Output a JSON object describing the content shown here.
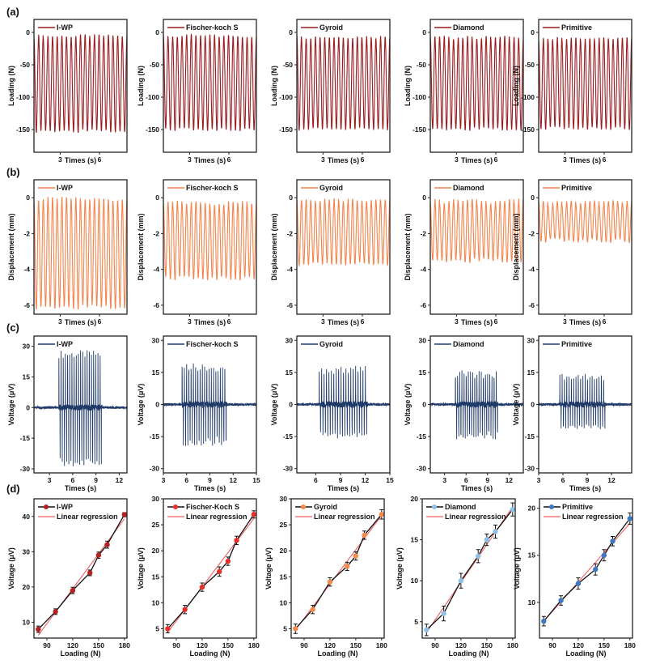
{
  "figure": {
    "row_labels": [
      "(a)",
      "(b)",
      "(c)",
      "(d)"
    ],
    "structures": [
      "I-WP",
      "Fischer-koch S",
      "Gyroid",
      "Diamond",
      "Primitive"
    ]
  },
  "chart_data": [
    {
      "row": "(a)",
      "type": "line",
      "description": "Cyclic compressive loading vs time",
      "xlabel": "Times (s)",
      "ylabel": "Loading (N)",
      "color": "#9b1c1f",
      "panels": [
        {
          "name": "I-WP",
          "legend": "I-WP",
          "xlim": [
            1,
            8.1
          ],
          "ylim": [
            -185,
            20
          ],
          "xticks": [
            3,
            6
          ],
          "yticks": [
            0,
            -50,
            -100,
            -150
          ],
          "cycles": 20,
          "peak": -6,
          "trough": -152
        },
        {
          "name": "Fischer-koch S",
          "legend": "Fischer-koch S",
          "xlim": [
            1,
            8.1
          ],
          "ylim": [
            -185,
            20
          ],
          "xticks": [
            3,
            6
          ],
          "yticks": [
            0,
            -50,
            -100,
            -150
          ],
          "cycles": 20,
          "peak": -6,
          "trough": -150
        },
        {
          "name": "Gyroid",
          "legend": "Gyroid",
          "xlim": [
            1,
            8.1
          ],
          "ylim": [
            -185,
            20
          ],
          "xticks": [
            3,
            6
          ],
          "yticks": [
            0,
            -50,
            -100,
            -150
          ],
          "cycles": 20,
          "peak": -7,
          "trough": -149
        },
        {
          "name": "Diamond",
          "legend": "Diamond",
          "xlim": [
            1,
            8.1
          ],
          "ylim": [
            -185,
            20
          ],
          "xticks": [
            3,
            6
          ],
          "yticks": [
            0,
            -50,
            -100,
            -150
          ],
          "cycles": 20,
          "peak": -8,
          "trough": -149
        },
        {
          "name": "Primitive",
          "legend": "Primitive",
          "xlim": [
            1,
            8.1
          ],
          "ylim": [
            -185,
            20
          ],
          "xticks": [
            3,
            6
          ],
          "yticks": [
            0,
            -50,
            -100,
            -150
          ],
          "cycles": 20,
          "peak": -10,
          "trough": -148
        }
      ]
    },
    {
      "row": "(b)",
      "type": "line",
      "description": "Displacement vs time",
      "xlabel": "Times (s)",
      "ylabel": "Displacement (mm)",
      "color": "#f4844c",
      "panels": [
        {
          "name": "I-WP",
          "legend": "I-WP",
          "xlim": [
            1,
            8.1
          ],
          "ylim": [
            -6.5,
            1.0
          ],
          "xticks": [
            3,
            6
          ],
          "yticks": [
            0,
            -2,
            -4,
            -6
          ],
          "cycles": 20,
          "peak": -0.1,
          "trough": -6.1
        },
        {
          "name": "Fischer-koch S",
          "legend": "Fischer-koch S",
          "xlim": [
            1,
            8.1
          ],
          "ylim": [
            -6.5,
            1.0
          ],
          "xticks": [
            3,
            6
          ],
          "yticks": [
            0,
            -2,
            -4,
            -6
          ],
          "cycles": 20,
          "peak": -0.3,
          "trough": -4.5
        },
        {
          "name": "Gyroid",
          "legend": "Gyroid",
          "xlim": [
            1,
            8.1
          ],
          "ylim": [
            -6.5,
            1.0
          ],
          "xticks": [
            3,
            6
          ],
          "yticks": [
            0,
            -2,
            -4,
            -6
          ],
          "cycles": 20,
          "peak": -0.1,
          "trough": -3.7
        },
        {
          "name": "Diamond",
          "legend": "Diamond",
          "xlim": [
            1,
            8.1
          ],
          "ylim": [
            -6.5,
            1.0
          ],
          "xticks": [
            3,
            6
          ],
          "yticks": [
            0,
            -2,
            -4,
            -6
          ],
          "cycles": 20,
          "peak": -0.2,
          "trough": -3.5
        },
        {
          "name": "Primitive",
          "legend": "Primitive",
          "xlim": [
            1,
            8.1
          ],
          "ylim": [
            -6.5,
            1.0
          ],
          "xticks": [
            3,
            6
          ],
          "yticks": [
            0,
            -2,
            -4,
            -6
          ],
          "cycles": 20,
          "peak": -0.3,
          "trough": -2.4
        }
      ]
    },
    {
      "row": "(c)",
      "type": "line",
      "description": "Output voltage vs time",
      "xlabel": "Times (s)",
      "ylabel": "Voltage (μV)",
      "color": "#1f3a68",
      "panels": [
        {
          "name": "I-WP",
          "legend": "I-WP",
          "xlim": [
            1,
            13
          ],
          "ylim": [
            -32,
            35
          ],
          "xticks": [
            3,
            6,
            9,
            12
          ],
          "yticks": [
            30,
            15,
            0,
            -15,
            -30
          ],
          "burst_start": 4.2,
          "burst_end": 9.8,
          "pulses": 20,
          "pos_peak": 29,
          "neg_peak": -29
        },
        {
          "name": "Fischer-koch S",
          "legend": "Fischer-koch S",
          "xlim": [
            3,
            15
          ],
          "ylim": [
            -32,
            32
          ],
          "xticks": [
            3,
            6,
            9,
            12,
            15
          ],
          "yticks": [
            30,
            15,
            0,
            -15,
            -30
          ],
          "burst_start": 5.4,
          "burst_end": 11.2,
          "pulses": 20,
          "pos_peak": 19,
          "neg_peak": -20
        },
        {
          "name": "Gyroid",
          "legend": "Gyroid",
          "xlim": [
            3.7,
            15
          ],
          "ylim": [
            -32,
            32
          ],
          "xticks": [
            6,
            9,
            12,
            15
          ],
          "yticks": [
            30,
            15,
            0,
            -15,
            -30
          ],
          "burst_start": 6.4,
          "burst_end": 12.3,
          "pulses": 20,
          "pos_peak": 18,
          "neg_peak": -16
        },
        {
          "name": "Diamond",
          "legend": "Diamond",
          "xlim": [
            1,
            14
          ],
          "ylim": [
            -32,
            32
          ],
          "xticks": [
            3,
            6,
            9,
            12
          ],
          "yticks": [
            30,
            15,
            0,
            -15,
            -30
          ],
          "burst_start": 4.5,
          "burst_end": 10.5,
          "pulses": 20,
          "pos_peak": 16,
          "neg_peak": -17
        },
        {
          "name": "Primitive",
          "legend": "Primitive",
          "xlim": [
            3,
            14.5
          ],
          "ylim": [
            -32,
            32
          ],
          "xticks": [
            3,
            6,
            9,
            12
          ],
          "yticks": [
            30,
            15,
            0,
            -15,
            -30
          ],
          "burst_start": 5.6,
          "burst_end": 11.3,
          "pulses": 20,
          "pos_peak": 14.5,
          "neg_peak": -12
        }
      ]
    },
    {
      "row": "(d)",
      "type": "scatter",
      "description": "Voltage vs loading with linear regression",
      "xlabel": "Loading (N)",
      "ylabel": "Voltage (μV)",
      "regression_label": "Linear regression",
      "regression_color": "#f06060",
      "x": [
        80,
        100,
        120,
        140,
        150,
        160,
        180
      ],
      "xticks": [
        90,
        120,
        150,
        180
      ],
      "panels": [
        {
          "name": "I-WP",
          "legend": "I-WP",
          "color": "#b52020",
          "ylim": [
            5.5,
            45
          ],
          "yticks": [
            10,
            20,
            30,
            40
          ],
          "values": [
            8,
            13,
            19,
            24,
            29,
            32,
            40.5
          ],
          "errors": [
            0.9,
            0.8,
            0.9,
            0.8,
            0.9,
            1.0,
            0.6
          ],
          "fit": [
            6.3,
            39.3
          ]
        },
        {
          "name": "Fischer-Koch S",
          "legend": "Fischer-Koch S",
          "color": "#e8302a",
          "ylim": [
            3.2,
            30
          ],
          "yticks": [
            5,
            10,
            15,
            20,
            25,
            30
          ],
          "values": [
            5,
            8.7,
            13,
            16,
            18,
            22,
            27
          ],
          "errors": [
            0.8,
            0.8,
            0.8,
            0.9,
            0.8,
            0.8,
            0.7
          ],
          "fit": [
            4.3,
            26.2
          ]
        },
        {
          "name": "Gyroid",
          "legend": "Gyroid",
          "color": "#f38b4a",
          "ylim": [
            3.2,
            30
          ],
          "yticks": [
            5,
            10,
            15,
            20,
            25,
            30
          ],
          "values": [
            5,
            8.7,
            14,
            17,
            19,
            23,
            27
          ],
          "errors": [
            0.9,
            0.8,
            0.8,
            0.8,
            0.8,
            0.8,
            0.9
          ],
          "fit": [
            4.8,
            26.8
          ]
        },
        {
          "name": "Diamond",
          "legend": "Diamond",
          "color": "#8fc0e8",
          "ylim": [
            3,
            20
          ],
          "yticks": [
            5,
            10,
            15,
            20
          ],
          "values": [
            4,
            6,
            10,
            13,
            15,
            16,
            18.7
          ],
          "errors": [
            0.7,
            0.9,
            0.9,
            0.8,
            0.7,
            0.8,
            0.8
          ],
          "fit": [
            3.7,
            19.0
          ]
        },
        {
          "name": "Primitive",
          "legend": "Primitive",
          "color": "#3f78c0",
          "ylim": [
            6.2,
            21
          ],
          "yticks": [
            10,
            15,
            20
          ],
          "values": [
            8,
            10.2,
            12,
            13.5,
            15,
            16.5,
            18.9
          ],
          "errors": [
            0.5,
            0.5,
            0.6,
            0.6,
            0.6,
            0.5,
            0.6
          ],
          "fit": [
            8.0,
            18.4
          ]
        }
      ]
    }
  ]
}
